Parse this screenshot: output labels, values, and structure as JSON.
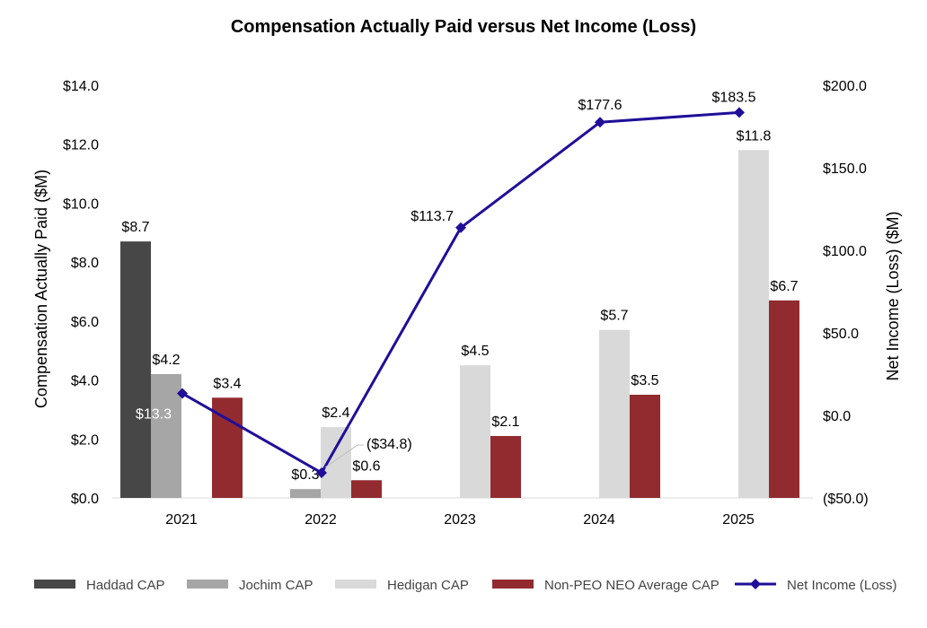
{
  "chart_data": {
    "type": "bar",
    "title": "Compensation Actually Paid versus Net Income (Loss)",
    "categories": [
      "2021",
      "2022",
      "2023",
      "2024",
      "2025"
    ],
    "y_left": {
      "label": "Compensation Actually Paid ($M)",
      "range": [
        0,
        14
      ],
      "ticks": [
        "$0.0",
        "$2.0",
        "$4.0",
        "$6.0",
        "$8.0",
        "$10.0",
        "$12.0",
        "$14.0"
      ]
    },
    "y_right": {
      "label": "Net Income (Loss) ($M)",
      "range": [
        -50,
        200
      ],
      "ticks": [
        "($50.0)",
        "$0.0",
        "$50.0",
        "$100.0",
        "$150.0",
        "$200.0"
      ]
    },
    "series": [
      {
        "name": "Haddad CAP",
        "kind": "bar",
        "color": "#474747",
        "axis": "left",
        "values": [
          8.7,
          null,
          null,
          null,
          null
        ],
        "labels": [
          "$8.7",
          "",
          "",
          "",
          ""
        ]
      },
      {
        "name": "Jochim CAP",
        "kind": "bar",
        "color": "#a6a6a6",
        "axis": "left",
        "values": [
          4.2,
          0.3,
          null,
          null,
          null
        ],
        "labels": [
          "$4.2",
          "$0.3",
          "",
          "",
          ""
        ]
      },
      {
        "name": "Hedigan CAP",
        "kind": "bar",
        "color": "#d9d9d9",
        "axis": "left",
        "values": [
          null,
          2.4,
          4.5,
          5.7,
          11.8
        ],
        "labels": [
          "",
          "$2.4",
          "$4.5",
          "$5.7",
          "$11.8"
        ]
      },
      {
        "name": "Non-PEO NEO Average CAP",
        "kind": "bar",
        "color": "#922b2f",
        "axis": "left",
        "values": [
          3.4,
          0.6,
          2.1,
          3.5,
          6.7
        ],
        "labels": [
          "$3.4",
          "$0.6",
          "$2.1",
          "$3.5",
          "$6.7"
        ]
      },
      {
        "name": "Net Income (Loss)",
        "kind": "line",
        "color": "#1f0f99",
        "axis": "right",
        "values": [
          13.3,
          -34.8,
          113.7,
          177.6,
          183.5
        ],
        "labels": [
          "$13.3",
          "($34.8)",
          "$113.7",
          "$177.6",
          "$183.5"
        ]
      }
    ],
    "legend_position": "bottom",
    "grid": false
  }
}
